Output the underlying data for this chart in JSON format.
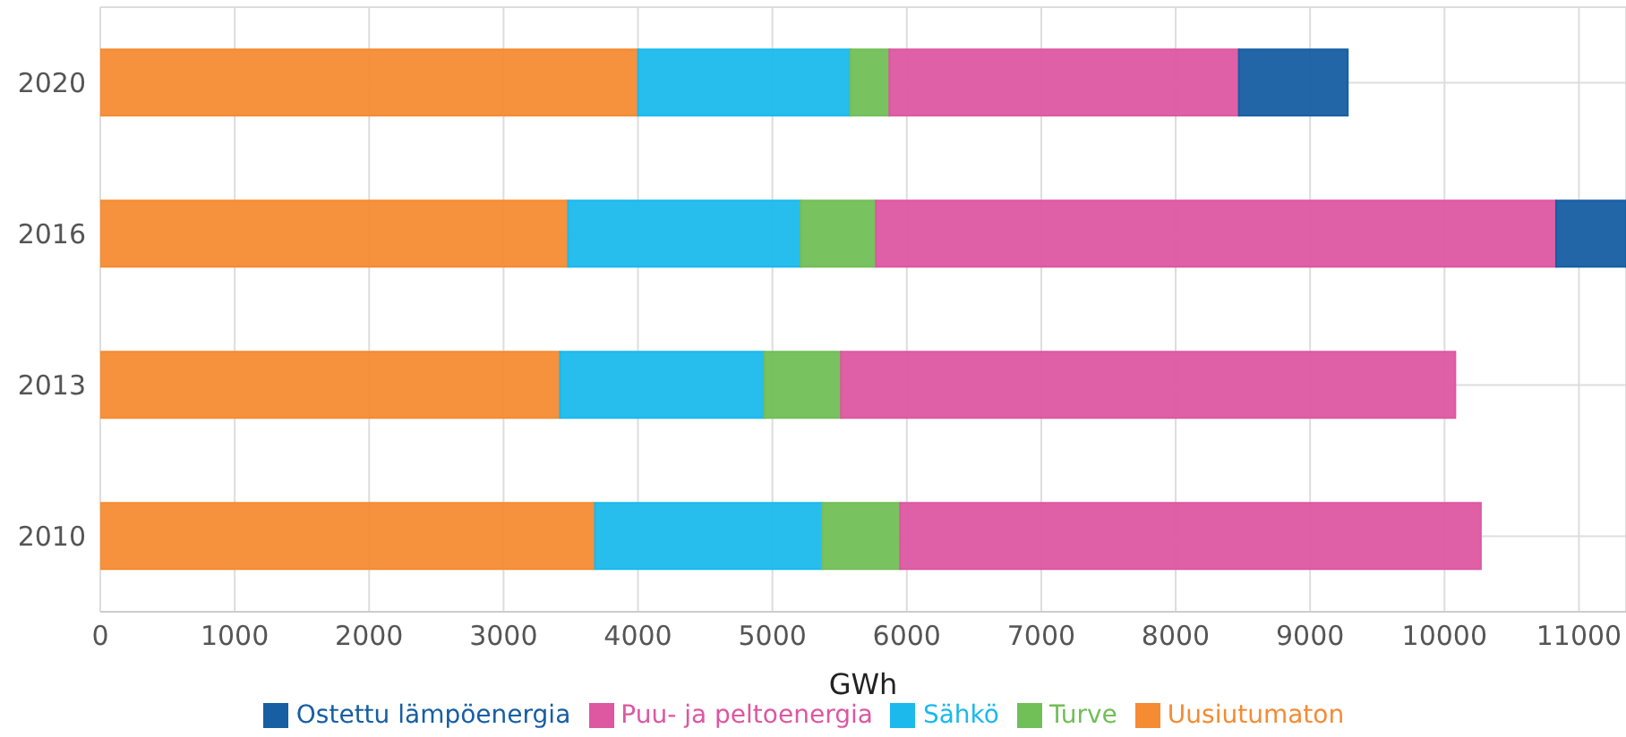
{
  "chart_data": {
    "type": "bar",
    "orientation": "horizontal",
    "stacked": true,
    "xlabel": "GWh",
    "categories": [
      "2020",
      "2016",
      "2013",
      "2010"
    ],
    "series": [
      {
        "name": "Uusiutumaton",
        "color": "#f58b33",
        "values": [
          4000,
          3480,
          3420,
          3680
        ]
      },
      {
        "name": "Sähkö",
        "color": "#1bb9ec",
        "values": [
          1580,
          1730,
          1520,
          1690
        ]
      },
      {
        "name": "Turve",
        "color": "#71bf57",
        "values": [
          290,
          560,
          570,
          580
        ]
      },
      {
        "name": "Puu- ja peltoenergia",
        "color": "#dd57a1",
        "values": [
          2600,
          5060,
          4570,
          4320
        ]
      },
      {
        "name": "Ostettu lämpöenergia",
        "color": "#175ea3",
        "values": [
          810,
          520,
          null,
          null
        ]
      }
    ],
    "xlim": [
      0,
      11350
    ],
    "xticks": [
      0,
      1000,
      2000,
      3000,
      4000,
      5000,
      6000,
      7000,
      8000,
      9000,
      10000,
      11000
    ],
    "grid": true,
    "legend": "bottom"
  }
}
